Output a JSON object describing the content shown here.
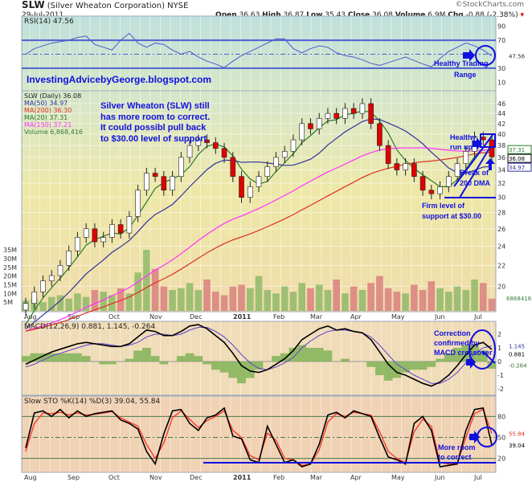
{
  "header": {
    "symbol": "SLW",
    "company": "(Silver Wheaton Corporation)",
    "exchange": "NYSE",
    "date": "29-Jul-2011",
    "brand": "©StockCharts.com",
    "quote": {
      "open_label": "Open",
      "open": "36.63",
      "high_label": "High",
      "high": "36.87",
      "low_label": "Low",
      "low": "35.43",
      "close_label": "Close",
      "close": "36.08",
      "volume_label": "Volume",
      "volume": "6.9M",
      "chg_label": "Chg",
      "chg": "-0.88 (-2.38%)"
    }
  },
  "colors": {
    "annotation": "#1010e0",
    "ma50": "#3030a0",
    "ma200": "#e03020",
    "ma20": "#2a7a2a",
    "ma150": "#ff30ff",
    "up_volume": "#8fba6a",
    "down_volume": "#d98080",
    "rsi": "#4a5ad0",
    "macd": "#000000",
    "macd_signal": "#6040d0",
    "sto_k": "#000000",
    "sto_d": "#ff3020"
  },
  "annotations": {
    "blog": "InvestingAdvicebyGeorge.blogspot.com",
    "rsi_note": [
      "Healthy Trading",
      "Range"
    ],
    "main_note": [
      "Silver Wheaton (SLW) still",
      "has more room to correct.",
      "It could possibl pull back",
      "to $30.00 level of support"
    ],
    "runup_note": [
      "Healthy",
      "run up"
    ],
    "break_note": [
      "Break of",
      "200 DMA"
    ],
    "support_note": [
      "Firm level of",
      "support at $30.00"
    ],
    "macd_note": [
      "Correction",
      "confirmed by",
      "MACD crossover"
    ],
    "sto_note": [
      "More room",
      "to correct"
    ]
  },
  "chart_data": [
    {
      "type": "line",
      "title": "RSI(14) 47.56",
      "indicator": "RSI(14)",
      "last_value": "47.56",
      "ylim": [
        0,
        100
      ],
      "yticks": [
        "90",
        "70",
        "30",
        "10"
      ],
      "reference_lines": [
        70,
        30,
        50
      ],
      "values": [
        50,
        58,
        62,
        66,
        68,
        70,
        74,
        76,
        64,
        60,
        56,
        70,
        80,
        66,
        60,
        66,
        64,
        56,
        50,
        54,
        46,
        40,
        36,
        31,
        40,
        48,
        54,
        60,
        66,
        72,
        72,
        58,
        52,
        58,
        62,
        60,
        52,
        48,
        46,
        42,
        37,
        34,
        38,
        42,
        46,
        41,
        36,
        32,
        44,
        54,
        60,
        66,
        62,
        56,
        47.56
      ]
    },
    {
      "type": "candlestick",
      "title": "SLW (Daily) 36.08",
      "y_scale": "log",
      "ylim": [
        17,
        48
      ],
      "yticks": [
        "46",
        "44",
        "42",
        "40",
        "38",
        "36",
        "34",
        "32",
        "30",
        "28",
        "26",
        "24",
        "22",
        "20"
      ],
      "x_tick_labels": [
        "Aug",
        "Sep",
        "Oct",
        "Nov",
        "Dec",
        "2011",
        "Feb",
        "Mar",
        "Apr",
        "May",
        "Jun",
        "Jul"
      ],
      "legend": [
        "SLW (Daily) 36.08",
        "MA(50) 34.97",
        "MA(200) 36.30",
        "MA(20) 37.31",
        "MA(150) 37.21",
        "Volume 6,868,416"
      ],
      "last_labels": [
        "37.31",
        "36.08",
        "34.97"
      ],
      "closes": [
        18.5,
        19.5,
        20.5,
        21,
        22,
        23.5,
        25,
        26,
        24.5,
        25,
        26.5,
        25.5,
        27.5,
        31,
        33.5,
        33,
        31,
        33,
        36,
        38,
        39,
        38.5,
        37.5,
        36,
        33,
        30,
        31.5,
        33,
        34.5,
        36,
        37,
        39,
        42,
        41,
        43,
        44,
        43,
        45,
        44,
        46,
        42,
        38,
        35,
        34,
        35,
        33,
        31,
        30.5,
        31.5,
        33,
        35,
        37,
        39.5,
        39,
        36.08
      ],
      "volume_ylim_millions": [
        0,
        40
      ],
      "volume_yticks": [
        "35M",
        "30M",
        "25M",
        "20M",
        "15M",
        "10M",
        "5M"
      ],
      "volume_last": "6868416",
      "volume_millions": [
        6,
        7,
        5,
        8,
        9,
        7,
        10,
        8,
        12,
        11,
        9,
        13,
        10,
        22,
        35,
        24,
        14,
        12,
        13,
        16,
        12,
        18,
        11,
        9,
        14,
        15,
        13,
        20,
        12,
        10,
        14,
        11,
        16,
        13,
        15,
        12,
        18,
        10,
        14,
        12,
        16,
        20,
        13,
        11,
        10,
        15,
        12,
        17,
        13,
        11,
        14,
        12,
        18,
        16,
        7
      ]
    },
    {
      "type": "line",
      "title": "MACD(12,26,9) 0.881, 1.145, -0.264",
      "values_label": [
        "0.881",
        "1.145",
        "-0.264"
      ],
      "ylim": [
        -2.8,
        2.9
      ],
      "yticks": [
        "2",
        "1",
        "0",
        "-1",
        "-2"
      ],
      "macd": [
        -0.2,
        0.1,
        0.4,
        0.7,
        0.9,
        1.1,
        1.3,
        1.4,
        1.3,
        1.2,
        1.1,
        1.1,
        1.3,
        1.8,
        2.3,
        2.2,
        1.9,
        1.9,
        2.2,
        2.6,
        2.7,
        2.4,
        1.9,
        1.4,
        0.6,
        -0.3,
        -0.7,
        -0.8,
        -0.6,
        -0.2,
        0.2,
        0.8,
        1.6,
        2.0,
        2.4,
        2.6,
        2.3,
        2.4,
        2.2,
        2.1,
        1.6,
        0.7,
        -0.2,
        -0.8,
        -1.0,
        -1.3,
        -1.6,
        -1.8,
        -1.5,
        -1.0,
        -0.3,
        0.5,
        1.2,
        1.4,
        0.881
      ],
      "signal": [
        -0.4,
        -0.2,
        0.1,
        0.4,
        0.6,
        0.8,
        1.0,
        1.2,
        1.3,
        1.3,
        1.2,
        1.1,
        1.2,
        1.4,
        1.8,
        2.0,
        2.0,
        1.9,
        2.0,
        2.3,
        2.5,
        2.5,
        2.2,
        1.8,
        1.2,
        0.5,
        -0.1,
        -0.5,
        -0.6,
        -0.4,
        -0.1,
        0.3,
        1.0,
        1.5,
        1.9,
        2.2,
        2.3,
        2.3,
        2.2,
        2.1,
        1.8,
        1.2,
        0.5,
        -0.2,
        -0.6,
        -1.0,
        -1.3,
        -1.6,
        -1.6,
        -1.3,
        -0.8,
        -0.1,
        0.6,
        1.0,
        1.145
      ]
    },
    {
      "type": "line",
      "title": "Slow STO %K(14) %D(3) 39.04, 55.84",
      "values_label": [
        "39.04",
        "55.84"
      ],
      "ylim": [
        0,
        100
      ],
      "yticks": [
        "80",
        "50",
        "20"
      ],
      "reference_lines": [
        80,
        50,
        20
      ],
      "k": [
        35,
        85,
        88,
        80,
        90,
        78,
        88,
        80,
        84,
        86,
        88,
        75,
        70,
        62,
        30,
        12,
        55,
        88,
        90,
        70,
        60,
        78,
        82,
        92,
        52,
        48,
        18,
        14,
        66,
        40,
        14,
        18,
        8,
        12,
        40,
        82,
        86,
        78,
        88,
        84,
        80,
        50,
        22,
        18,
        12,
        70,
        80,
        60,
        8,
        10,
        12,
        60,
        90,
        92,
        39.04
      ],
      "d": [
        30,
        70,
        85,
        84,
        86,
        82,
        85,
        82,
        83,
        85,
        87,
        78,
        72,
        66,
        40,
        20,
        42,
        78,
        88,
        76,
        64,
        74,
        80,
        88,
        60,
        50,
        24,
        18,
        56,
        46,
        20,
        18,
        10,
        12,
        32,
        72,
        84,
        80,
        86,
        84,
        82,
        58,
        30,
        20,
        14,
        58,
        76,
        66,
        14,
        12,
        12,
        50,
        84,
        90,
        55.84
      ]
    }
  ]
}
